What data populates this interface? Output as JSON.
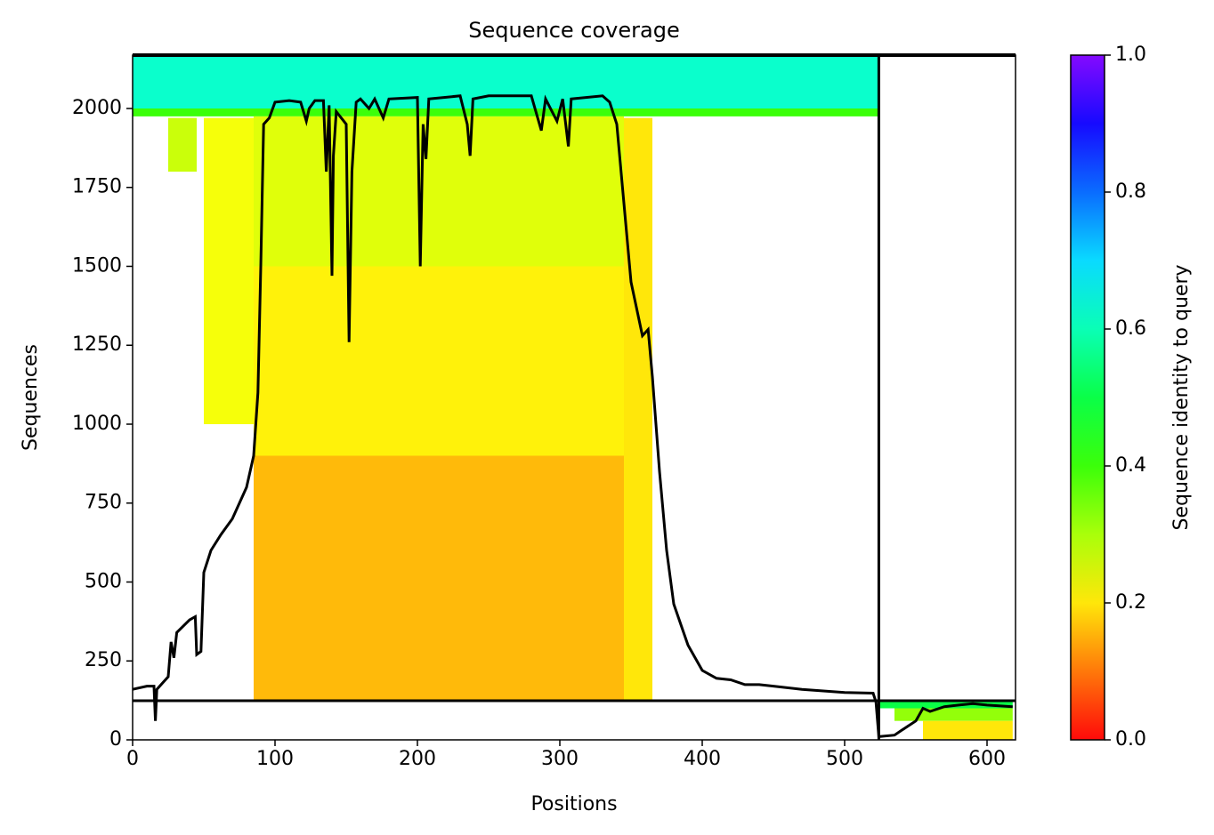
{
  "chart_data": {
    "type": "coverage",
    "title": "Sequence coverage",
    "x_label": "Positions",
    "y_label": "Sequences",
    "colorbar_label": "Sequence identity to query",
    "colormap": "rainbow",
    "xlim": [
      0,
      620
    ],
    "ylim": [
      0,
      2169
    ],
    "xticks": [
      0,
      100,
      200,
      300,
      400,
      500,
      600
    ],
    "yticks": [
      0,
      250,
      500,
      750,
      1000,
      1250,
      1500,
      1750,
      2000
    ],
    "clim": [
      0,
      1
    ],
    "cticks": [
      {
        "value": 0,
        "label": "0.0"
      },
      0.2,
      0.4,
      0.6,
      0.8,
      {
        "value": 1,
        "label": "1.0"
      }
    ],
    "blocks": [
      {
        "x": [
          0,
          524
        ],
        "y": [
          2000,
          2169
        ],
        "identity": 0.62
      },
      {
        "x": [
          0,
          524
        ],
        "y": [
          1975,
          2000
        ],
        "identity": 0.4
      },
      {
        "x": [
          25,
          45
        ],
        "y": [
          1800,
          1970
        ],
        "identity": 0.27
      },
      {
        "x": [
          50,
          85
        ],
        "y": [
          1000,
          1970
        ],
        "identity": 0.23
      },
      {
        "x": [
          85,
          345
        ],
        "y": [
          1500,
          1975
        ],
        "identity": 0.25
      },
      {
        "x": [
          85,
          345
        ],
        "y": [
          900,
          1500
        ],
        "identity": 0.21
      },
      {
        "x": [
          85,
          345
        ],
        "y": [
          124,
          900
        ],
        "identity": 0.16
      },
      {
        "x": [
          345,
          365
        ],
        "y": [
          124,
          1970
        ],
        "identity": 0.2
      },
      {
        "x": [
          524,
          618
        ],
        "y": [
          100,
          124
        ],
        "identity": 0.5
      },
      {
        "x": [
          535,
          618
        ],
        "y": [
          60,
          100
        ],
        "identity": 0.32
      },
      {
        "x": [
          555,
          618
        ],
        "y": [
          0,
          60
        ],
        "identity": 0.2
      }
    ],
    "separators": {
      "x": [
        524
      ],
      "y": [
        124
      ]
    },
    "line": {
      "color": "#000000",
      "x": [
        0,
        10,
        15,
        16,
        17,
        25,
        27,
        29,
        31,
        40,
        44,
        45,
        48,
        50,
        55,
        62,
        70,
        75,
        80,
        85,
        88,
        90,
        92,
        96,
        100,
        110,
        118,
        122,
        124,
        128,
        134,
        136,
        138,
        140,
        141,
        143,
        150,
        152,
        154,
        157,
        160,
        166,
        170,
        176,
        180,
        200,
        202,
        204,
        206,
        208,
        230,
        235,
        237,
        239,
        250,
        280,
        287,
        290,
        298,
        302,
        306,
        308,
        330,
        335,
        340,
        345,
        350,
        358,
        362,
        365,
        370,
        375,
        380,
        390,
        400,
        410,
        420,
        430,
        440,
        450,
        470,
        500,
        520,
        522,
        524,
        535,
        540,
        550,
        555,
        560,
        570,
        580,
        590,
        600,
        618
      ],
      "values": [
        160,
        170,
        170,
        60,
        160,
        200,
        310,
        260,
        340,
        380,
        390,
        270,
        280,
        530,
        600,
        650,
        700,
        750,
        800,
        900,
        1100,
        1500,
        1950,
        1970,
        2020,
        2025,
        2020,
        1960,
        2000,
        2025,
        2025,
        1800,
        2010,
        1470,
        1850,
        1990,
        1950,
        1260,
        1800,
        2020,
        2030,
        2000,
        2030,
        1970,
        2030,
        2035,
        1500,
        1950,
        1840,
        2030,
        2040,
        1950,
        1850,
        2030,
        2040,
        2040,
        1930,
        2030,
        1960,
        2030,
        1880,
        2030,
        2040,
        2020,
        1950,
        1700,
        1450,
        1280,
        1300,
        1150,
        850,
        600,
        430,
        300,
        220,
        195,
        190,
        175,
        175,
        170,
        160,
        150,
        148,
        120,
        10,
        15,
        30,
        60,
        100,
        90,
        105,
        110,
        115,
        110,
        105
      ]
    }
  }
}
